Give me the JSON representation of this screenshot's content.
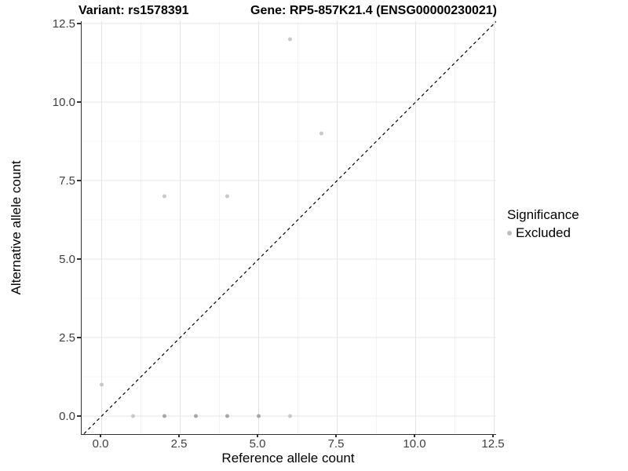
{
  "title": {
    "left": "Variant: rs1578391",
    "right": "Gene: RP5-857K21.4 (ENSG00000230021)"
  },
  "axes": {
    "x": {
      "label": "Reference allele count",
      "tick_labels": [
        "0.0",
        "2.5",
        "5.0",
        "7.5",
        "10.0",
        "12.5"
      ],
      "tick_values": [
        0,
        2.5,
        5,
        7.5,
        10,
        12.5
      ],
      "limits": [
        0,
        12.5
      ]
    },
    "y": {
      "label": "Alternative allele count",
      "tick_labels": [
        "0.0",
        "2.5",
        "5.0",
        "7.5",
        "10.0",
        "12.5"
      ],
      "tick_values": [
        0,
        2.5,
        5,
        7.5,
        10,
        12.5
      ],
      "limits": [
        0,
        12.5
      ]
    }
  },
  "legend": {
    "title": "Significance",
    "items": [
      {
        "label": "Excluded",
        "marker_color": "#bebebe"
      }
    ]
  },
  "chart_data": {
    "type": "scatter",
    "title": "Variant: rs1578391 | Gene: RP5-857K21.4 (ENSG00000230021)",
    "xlabel": "Reference allele count",
    "ylabel": "Alternative allele count",
    "xlim": [
      0,
      12.5
    ],
    "ylim": [
      0,
      12.5
    ],
    "grid": true,
    "legend_position": "right",
    "series": [
      {
        "name": "Excluded",
        "marker": "circle",
        "marker_radius_px": 2.5,
        "color_single": "#c8c8c8",
        "color_overlapped": "#a7a7a7",
        "points": [
          {
            "x": 0,
            "y": 1,
            "overlapped": false
          },
          {
            "x": 1,
            "y": 0,
            "overlapped": false
          },
          {
            "x": 2,
            "y": 0,
            "overlapped": true
          },
          {
            "x": 3,
            "y": 0,
            "overlapped": true
          },
          {
            "x": 4,
            "y": 0,
            "overlapped": true
          },
          {
            "x": 5,
            "y": 0,
            "overlapped": true
          },
          {
            "x": 6,
            "y": 0,
            "overlapped": false
          },
          {
            "x": 2,
            "y": 7,
            "overlapped": false
          },
          {
            "x": 4,
            "y": 7,
            "overlapped": false
          },
          {
            "x": 6,
            "y": 12,
            "overlapped": false
          },
          {
            "x": 7,
            "y": 9,
            "overlapped": false
          }
        ]
      }
    ],
    "reference_line": {
      "type": "identity y=x",
      "style": "dashed",
      "color": "#000000"
    }
  },
  "colors": {
    "background": "#ffffff",
    "axis_line": "#333333",
    "tick_label": "#404040",
    "grid_major": "#e4e4e4",
    "grid_minor": "#f1f1f1",
    "title_text": "#000000"
  }
}
